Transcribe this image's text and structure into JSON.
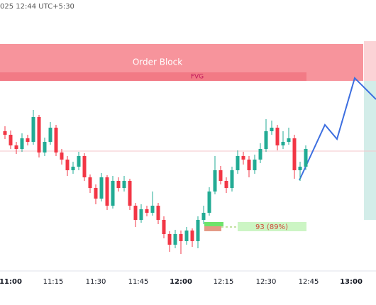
{
  "chart_data": {
    "type": "candlestick",
    "header_text": "025 12:44 UTC+5:30",
    "zone_label": "Order Block",
    "gap_label": "FVG",
    "position_label": "93 (89%)",
    "up_color": "#22ab94",
    "down_color": "#f23645",
    "x": [
      658,
      660,
      662,
      664,
      666,
      668,
      670,
      672,
      674,
      676,
      678,
      680,
      682,
      684,
      686,
      688,
      690,
      692,
      694,
      696,
      698,
      700,
      702,
      704,
      706,
      708,
      710,
      712,
      714,
      716,
      718,
      720,
      722,
      724,
      726,
      728,
      730,
      732,
      734,
      736,
      738,
      740,
      742,
      744,
      746,
      748,
      750,
      752,
      754,
      756,
      758,
      760,
      762,
      764
    ],
    "open": [
      215,
      210,
      195,
      190,
      205,
      200,
      235,
      185,
      200,
      220,
      185,
      175,
      160,
      165,
      180,
      150,
      135,
      120,
      150,
      110,
      145,
      135,
      145,
      110,
      90,
      105,
      100,
      110,
      90,
      70,
      55,
      70,
      60,
      75,
      60,
      90,
      100,
      130,
      160,
      145,
      135,
      160,
      180,
      175,
      160,
      175,
      190,
      215,
      220,
      195,
      200,
      205,
      160,
      165
    ],
    "high": [
      222,
      216,
      200,
      212,
      210,
      245,
      238,
      206,
      228,
      224,
      190,
      180,
      172,
      186,
      184,
      154,
      140,
      156,
      153,
      152,
      150,
      152,
      148,
      114,
      112,
      110,
      130,
      114,
      95,
      74,
      76,
      75,
      80,
      78,
      95,
      110,
      136,
      180,
      166,
      150,
      165,
      188,
      186,
      180,
      182,
      198,
      232,
      230,
      224,
      215,
      220,
      210,
      172,
      195
    ],
    "low": [
      204,
      190,
      183,
      186,
      195,
      196,
      178,
      180,
      196,
      180,
      168,
      152,
      155,
      160,
      145,
      128,
      112,
      116,
      104,
      106,
      130,
      130,
      104,
      80,
      86,
      95,
      96,
      84,
      64,
      45,
      50,
      42,
      55,
      52,
      50,
      84,
      96,
      126,
      140,
      128,
      130,
      155,
      168,
      150,
      155,
      170,
      186,
      210,
      188,
      190,
      196,
      148,
      145,
      160
    ],
    "close": [
      210,
      195,
      190,
      205,
      200,
      235,
      185,
      200,
      220,
      185,
      175,
      160,
      165,
      180,
      150,
      135,
      120,
      150,
      110,
      145,
      135,
      145,
      110,
      90,
      105,
      100,
      110,
      90,
      70,
      55,
      70,
      60,
      75,
      60,
      90,
      100,
      130,
      160,
      145,
      135,
      160,
      180,
      175,
      160,
      175,
      190,
      215,
      220,
      195,
      200,
      205,
      160,
      165,
      190
    ],
    "xlim": [
      656.25,
      788.75
    ],
    "ylim": [
      20,
      400
    ],
    "xticks": [
      {
        "value": 660,
        "label": "11:00"
      },
      {
        "value": 675,
        "label": "11:15"
      },
      {
        "value": 690,
        "label": "11:30"
      },
      {
        "value": 705,
        "label": "11:45"
      },
      {
        "value": 720,
        "label": "12:00"
      },
      {
        "value": 735,
        "label": "12:15"
      },
      {
        "value": 750,
        "label": "12:30"
      },
      {
        "value": 765,
        "label": "12:45"
      },
      {
        "value": 780,
        "label": "13:00"
      }
    ]
  }
}
